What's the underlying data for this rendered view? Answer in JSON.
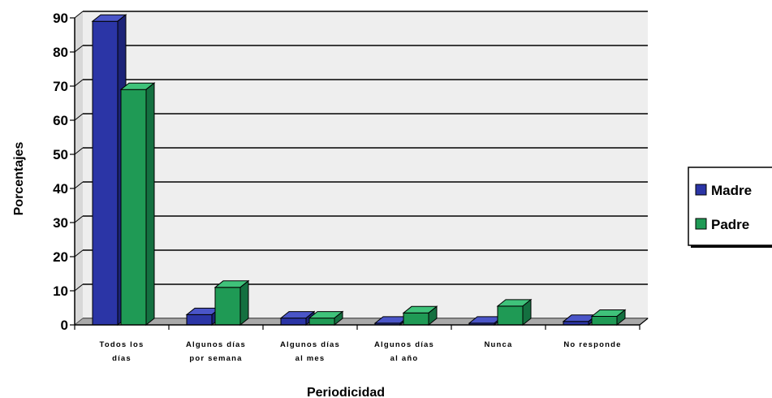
{
  "chart_data": {
    "type": "bar",
    "title": "",
    "xlabel": "Periodicidad",
    "ylabel": "Porcentajes",
    "ylim": [
      0,
      90
    ],
    "yticks": [
      0,
      10,
      20,
      30,
      40,
      50,
      60,
      70,
      80,
      90
    ],
    "categories": [
      [
        "Todos los",
        "días"
      ],
      [
        "Algunos días",
        "por semana"
      ],
      [
        "Algunos días",
        "al mes"
      ],
      [
        "Algunos días",
        "al año"
      ],
      [
        "Nunca"
      ],
      [
        "No responde"
      ]
    ],
    "series": [
      {
        "name": "Madre",
        "color": "#2b35a6",
        "top_color": "#4a55c8",
        "side_color": "#1c2378",
        "values": [
          89,
          3,
          2,
          0.5,
          0.5,
          1
        ]
      },
      {
        "name": "Padre",
        "color": "#1f9a55",
        "top_color": "#3fc27a",
        "side_color": "#147040",
        "values": [
          69,
          11,
          2,
          3.5,
          5.5,
          2.5
        ]
      }
    ],
    "grid": true,
    "legend_position": "right",
    "style": "3d-clustered-bar"
  }
}
